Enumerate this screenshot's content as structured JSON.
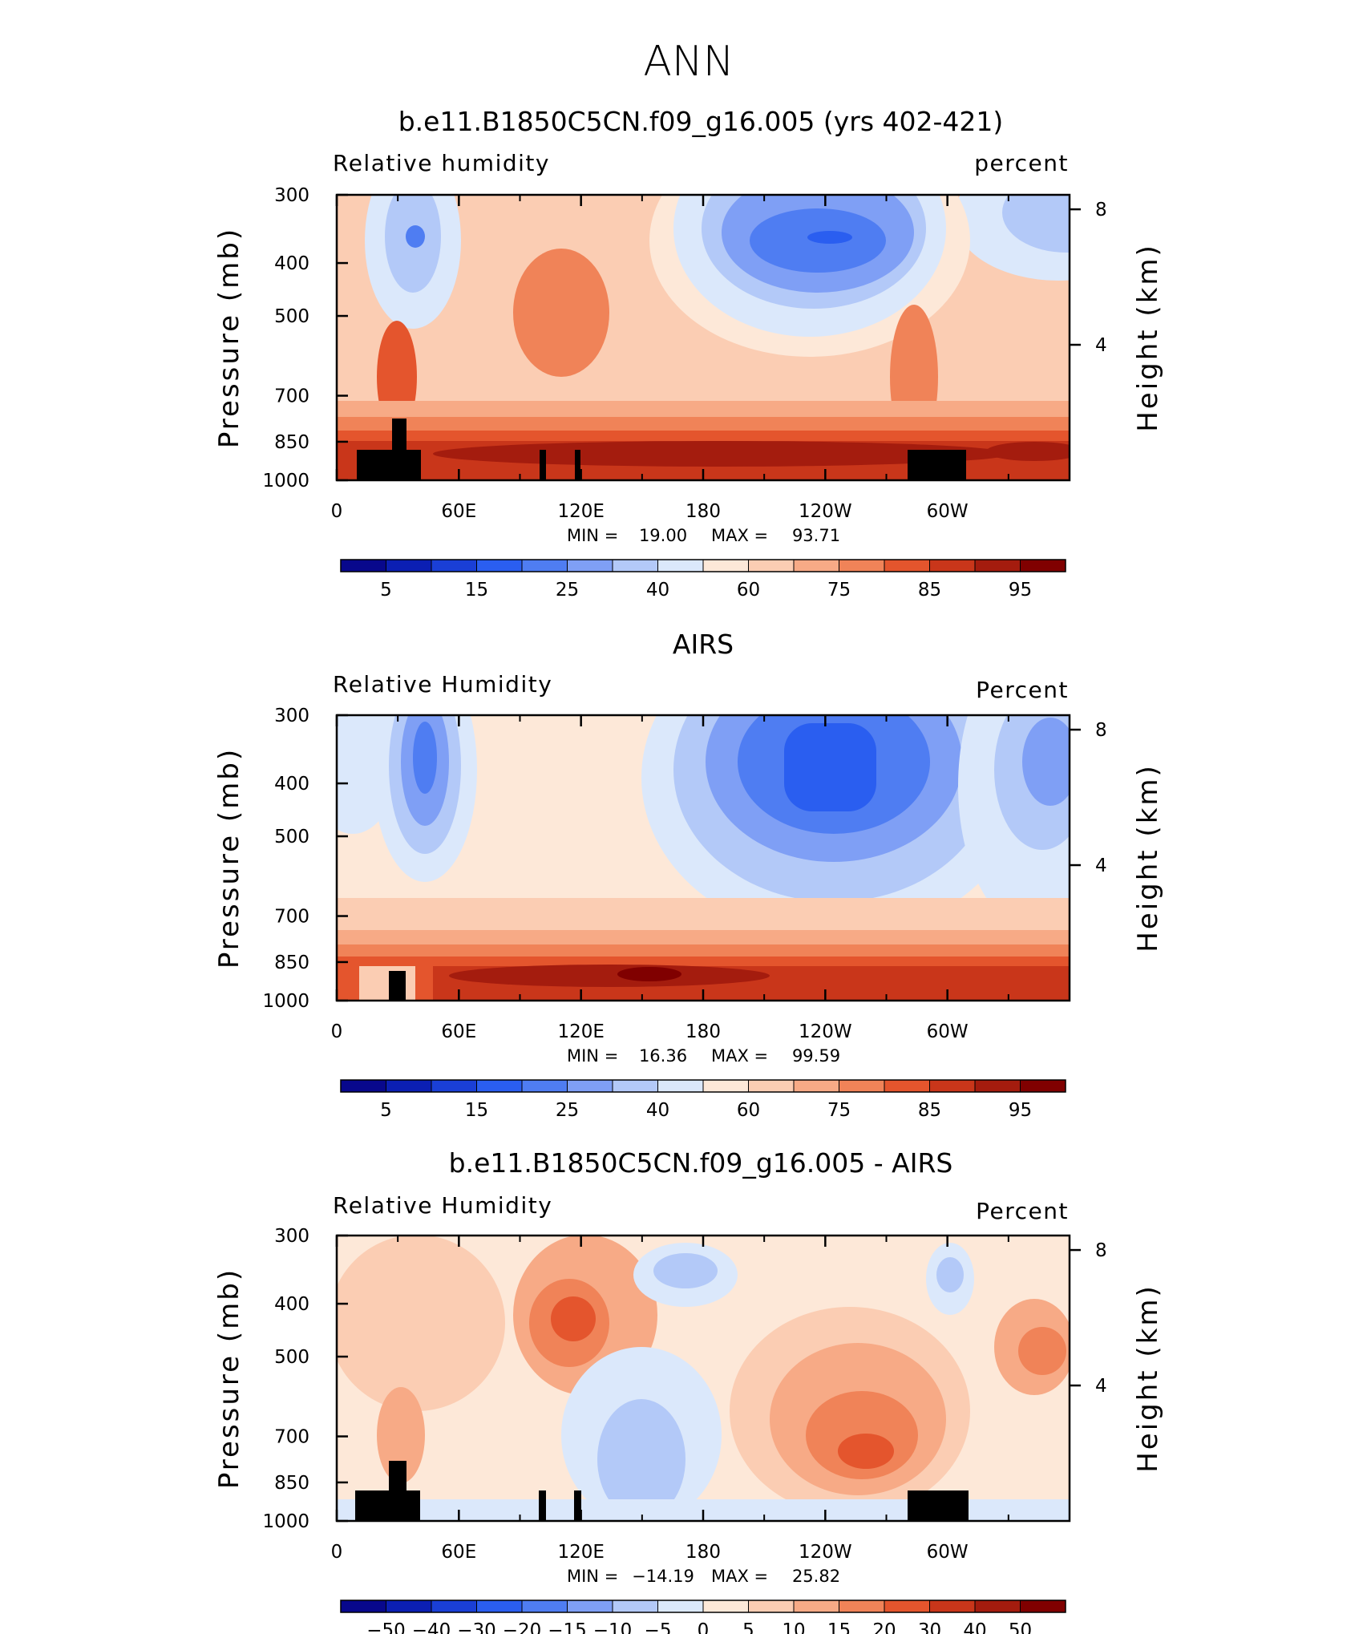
{
  "figure_title": "ANN",
  "colors": {
    "rh_levels": [
      "#08088c",
      "#0b1fb3",
      "#1a3fd6",
      "#2a5ef0",
      "#4f7df2",
      "#7f9ff5",
      "#b3c9f8",
      "#dbe8fb",
      "#fde8d8",
      "#fbcdb3",
      "#f7aa86",
      "#f08358",
      "#e4552d",
      "#c9361a",
      "#a41c0e",
      "#800000"
    ],
    "diff_levels": [
      "#08088c",
      "#0b1fb3",
      "#1a3fd6",
      "#2a5ef0",
      "#4f7df2",
      "#7f9ff5",
      "#b3c9f8",
      "#dbe8fb",
      "#fde8d8",
      "#fbcdb3",
      "#f7aa86",
      "#f08358",
      "#e4552d",
      "#c9361a",
      "#a41c0e",
      "#800000"
    ],
    "topography": "#000000"
  },
  "chart_data": [
    {
      "type": "heatmap",
      "title": "b.e11.B1850C5CN.f09_g16.005 (yrs 402-421)",
      "variable_label": "Relative humidity",
      "units_label": "percent",
      "ylabel": "Pressure (mb)",
      "ylabel_right": "Height (km)",
      "x_ticks": [
        "0",
        "60E",
        "120E",
        "180",
        "120W",
        "60W"
      ],
      "y_ticks": [
        "300",
        "400",
        "500",
        "700",
        "850",
        "1000"
      ],
      "y_ticks_right": [
        "8",
        "4"
      ],
      "stats_min_label": "MIN =",
      "stats_min": "19.00",
      "stats_max_label": "MAX =",
      "stats_max": "93.71",
      "colorbar_ticks": [
        "5",
        "15",
        "25",
        "40",
        "60",
        "75",
        "85",
        "95"
      ],
      "levels": [
        5,
        10,
        15,
        20,
        25,
        30,
        40,
        50,
        60,
        70,
        75,
        80,
        85,
        90,
        95
      ],
      "ylim": [
        1000,
        300
      ],
      "xlim": [
        0,
        360
      ],
      "field_min": 19.0,
      "field_max": 93.71
    },
    {
      "type": "heatmap",
      "title": "AIRS",
      "variable_label": "Relative Humidity",
      "units_label": "Percent",
      "ylabel": "Pressure (mb)",
      "ylabel_right": "Height (km)",
      "x_ticks": [
        "0",
        "60E",
        "120E",
        "180",
        "120W",
        "60W"
      ],
      "y_ticks": [
        "300",
        "400",
        "500",
        "700",
        "850",
        "1000"
      ],
      "y_ticks_right": [
        "8",
        "4"
      ],
      "stats_min_label": "MIN =",
      "stats_min": "16.36",
      "stats_max_label": "MAX =",
      "stats_max": "99.59",
      "colorbar_ticks": [
        "5",
        "15",
        "25",
        "40",
        "60",
        "75",
        "85",
        "95"
      ],
      "levels": [
        5,
        10,
        15,
        20,
        25,
        30,
        40,
        50,
        60,
        70,
        75,
        80,
        85,
        90,
        95
      ],
      "ylim": [
        1000,
        300
      ],
      "xlim": [
        0,
        360
      ],
      "field_min": 16.36,
      "field_max": 99.59
    },
    {
      "type": "heatmap",
      "title": "b.e11.B1850C5CN.f09_g16.005 - AIRS",
      "variable_label": "Relative Humidity",
      "units_label": "Percent",
      "ylabel": "Pressure (mb)",
      "ylabel_right": "Height (km)",
      "x_ticks": [
        "0",
        "60E",
        "120E",
        "180",
        "120W",
        "60W"
      ],
      "y_ticks": [
        "300",
        "400",
        "500",
        "700",
        "850",
        "1000"
      ],
      "y_ticks_right": [
        "8",
        "4"
      ],
      "stats_min_label": "MIN =",
      "stats_min": "−14.19",
      "stats_max_label": "MAX =",
      "stats_max": "25.82",
      "colorbar_ticks": [
        "−50",
        "−40",
        "−30",
        "−20",
        "−15",
        "−10",
        "−5",
        "0",
        "5",
        "10",
        "15",
        "20",
        "30",
        "40",
        "50"
      ],
      "levels": [
        -50,
        -40,
        -30,
        -20,
        -15,
        -10,
        -5,
        0,
        5,
        10,
        15,
        20,
        30,
        40,
        50
      ],
      "ylim": [
        1000,
        300
      ],
      "xlim": [
        0,
        360
      ],
      "field_min": -14.19,
      "field_max": 25.82
    }
  ]
}
